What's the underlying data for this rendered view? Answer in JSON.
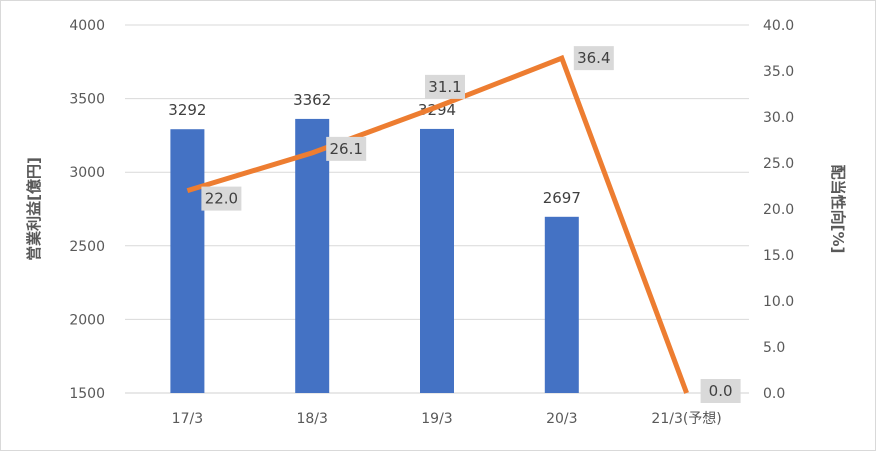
{
  "chart_data": {
    "type": "bar",
    "categories": [
      "17/3",
      "18/3",
      "19/3",
      "20/3",
      "21/3(予想)"
    ],
    "series": [
      {
        "name": "",
        "type": "bar",
        "axis": "left",
        "values": [
          3292,
          3362,
          3294,
          2697,
          null
        ],
        "labels": [
          "3292",
          "3362",
          "3294",
          "2697",
          ""
        ]
      },
      {
        "name": "",
        "type": "line",
        "axis": "right",
        "values": [
          22.0,
          26.1,
          31.1,
          36.4,
          0.0
        ],
        "labels": [
          "22.0",
          "26.1",
          "31.1",
          "36.4",
          "0.0"
        ]
      }
    ],
    "ylabel": "営業利益[億円]",
    "y2label": "配当性向[%]",
    "ylim": [
      1500,
      4000
    ],
    "y2lim": [
      0,
      40
    ],
    "yticks": [
      "1500",
      "2000",
      "2500",
      "3000",
      "3500",
      "4000"
    ],
    "y2ticks": [
      "0.0",
      "5.0",
      "10.0",
      "15.0",
      "20.0",
      "25.0",
      "30.0",
      "35.0",
      "40.0"
    ],
    "grid": true,
    "legend": "none",
    "colors": {
      "bar": "#4472c4",
      "line": "#ed7d31",
      "gridline": "#d9d9d9",
      "label_box": "#d9d9d9"
    }
  }
}
